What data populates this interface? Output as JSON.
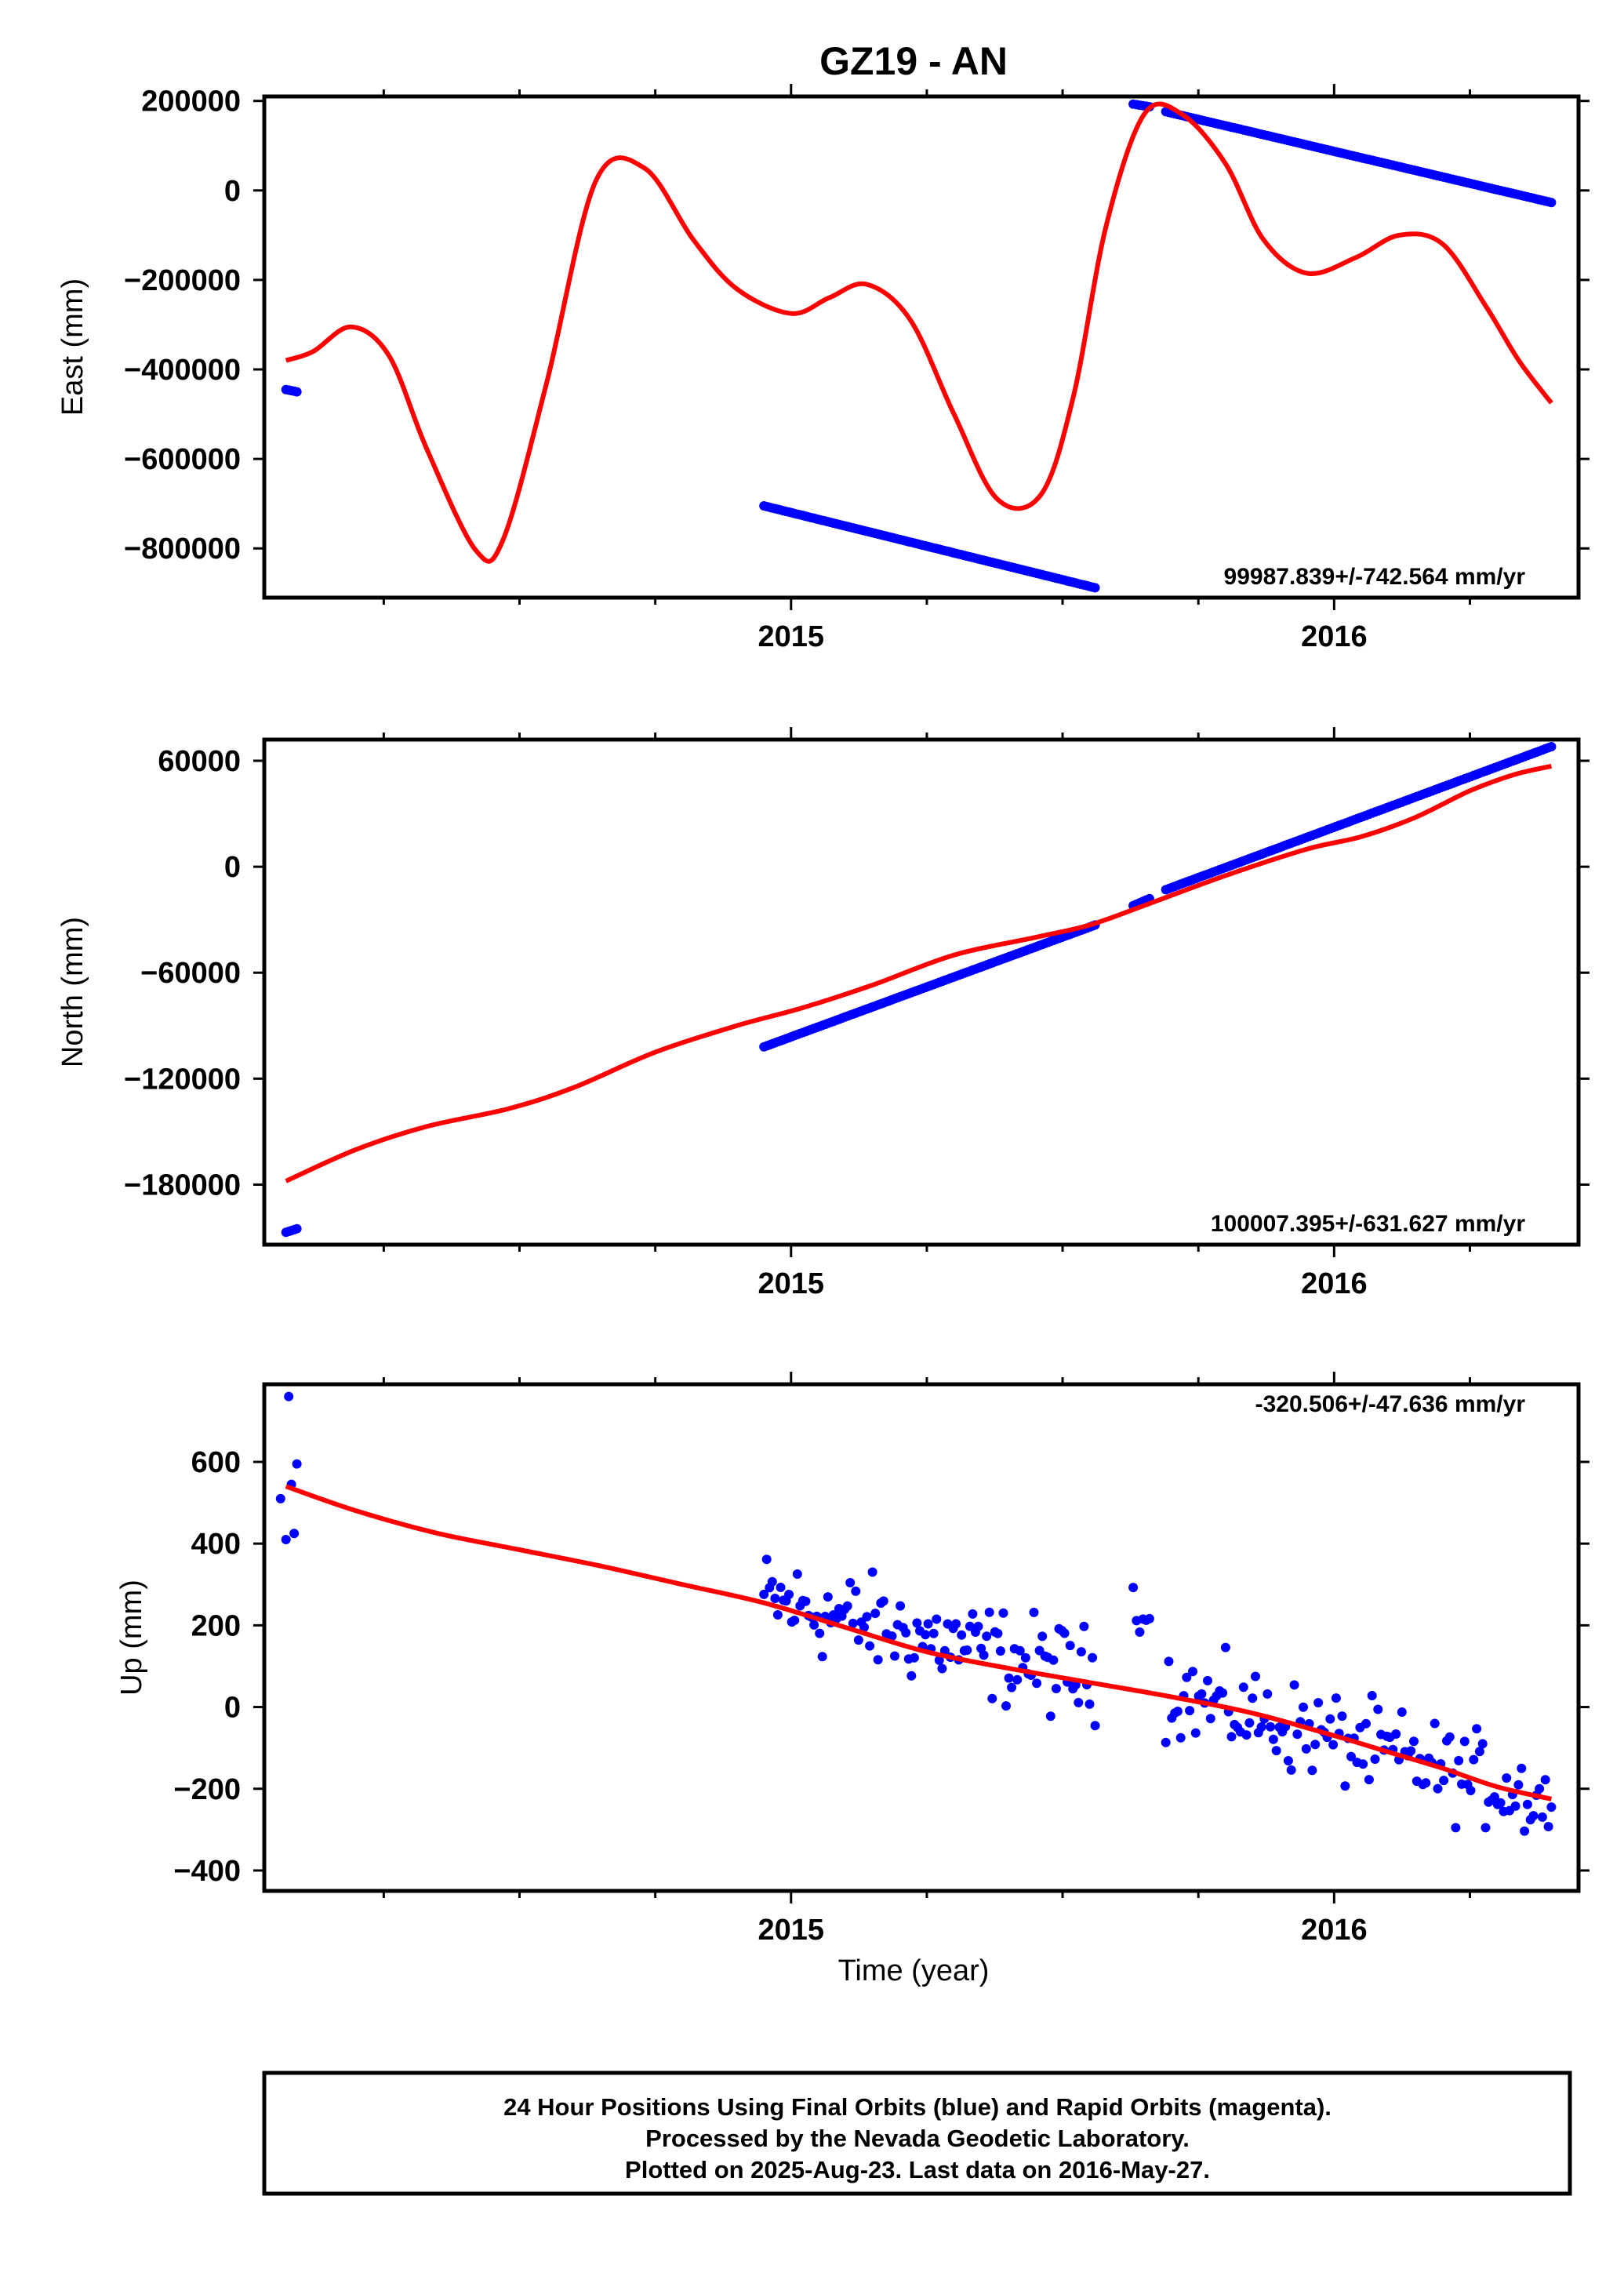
{
  "title": "GZ19 - AN",
  "colors": {
    "final_orbits": "#0000ff",
    "model": "#ff0000",
    "axes": "#000000"
  },
  "xlabel": "Time (year)",
  "x_tick_labels": [
    "2015",
    "2016"
  ],
  "footer": {
    "line1": "24 Hour Positions Using Final Orbits (blue) and Rapid Orbits (magenta).",
    "line2": "Processed by the Nevada Geodetic Laboratory.",
    "line3": "Plotted on 2025-Aug-23. Last data on 2016-May-27."
  },
  "chart_data": [
    {
      "type": "scatter",
      "panel": "east",
      "ylabel": "East (mm)",
      "rate_label": "99987.839+/-742.564 mm/yr",
      "xlim": [
        2014.03,
        2016.45
      ],
      "ylim": [
        -910000,
        210000
      ],
      "x_major_ticks": [
        2015,
        2016
      ],
      "x_minor_ticks": [
        2014.25,
        2014.5,
        2014.75,
        2015.25,
        2015.5,
        2015.75,
        2016.25
      ],
      "y_ticks": [
        200000,
        0,
        -200000,
        -400000,
        -600000,
        -800000
      ],
      "y_tick_labels": [
        "200000",
        "0",
        "−200000",
        "−400000",
        "−600000",
        "−800000"
      ],
      "series": [
        {
          "kind": "points",
          "segments": [
            {
              "x": [
                2014.07,
                2014.09
              ],
              "y": [
                -445000,
                -450000
              ],
              "n": 5
            },
            {
              "x": [
                2014.95,
                2015.56
              ],
              "y": [
                -705000,
                -888000
              ],
              "n": 120
            },
            {
              "x": [
                2015.63,
                2015.66
              ],
              "y": [
                193000,
                187000
              ],
              "n": 6
            },
            {
              "x": [
                2015.69,
                2016.4
              ],
              "y": [
                176000,
                -27000
              ],
              "n": 130
            }
          ]
        },
        {
          "kind": "line",
          "x": [
            2014.07,
            2014.12,
            2014.19,
            2014.26,
            2014.33,
            2014.42,
            2014.47,
            2014.55,
            2014.64,
            2014.73,
            2014.82,
            2014.9,
            2015.0,
            2015.07,
            2015.14,
            2015.22,
            2015.3,
            2015.38,
            2015.46,
            2015.52,
            2015.58,
            2015.65,
            2015.72,
            2015.8,
            2015.87,
            2015.95,
            2016.04,
            2016.12,
            2016.2,
            2016.28,
            2016.34,
            2016.4
          ],
          "y": [
            -380000,
            -360000,
            -305000,
            -370000,
            -580000,
            -805000,
            -780000,
            -430000,
            20000,
            50000,
            -110000,
            -220000,
            -275000,
            -240000,
            -210000,
            -290000,
            -500000,
            -690000,
            -680000,
            -460000,
            -80000,
            170000,
            170000,
            60000,
            -110000,
            -185000,
            -150000,
            -100000,
            -120000,
            -260000,
            -380000,
            -475000
          ]
        }
      ]
    },
    {
      "type": "scatter",
      "panel": "north",
      "ylabel": "North (mm)",
      "rate_label": "100007.395+/-631.627 mm/yr",
      "xlim": [
        2014.03,
        2016.45
      ],
      "ylim": [
        -214000,
        72000
      ],
      "x_major_ticks": [
        2015,
        2016
      ],
      "x_minor_ticks": [
        2014.25,
        2014.5,
        2014.75,
        2015.25,
        2015.5,
        2015.75,
        2016.25
      ],
      "y_ticks": [
        60000,
        0,
        -60000,
        -120000,
        -180000
      ],
      "y_tick_labels": [
        "60000",
        "0",
        "−60000",
        "−120000",
        "−180000"
      ],
      "series": [
        {
          "kind": "points",
          "segments": [
            {
              "x": [
                2014.07,
                2014.09
              ],
              "y": [
                -207000,
                -205000
              ],
              "n": 5
            },
            {
              "x": [
                2014.95,
                2015.56
              ],
              "y": [
                -102000,
                -33000
              ],
              "n": 120
            },
            {
              "x": [
                2015.63,
                2015.66
              ],
              "y": [
                -22000,
                -18000
              ],
              "n": 6
            },
            {
              "x": [
                2015.69,
                2016.4
              ],
              "y": [
                -13000,
                68000
              ],
              "n": 130
            }
          ]
        },
        {
          "kind": "line",
          "x": [
            2014.07,
            2014.2,
            2014.33,
            2014.48,
            2014.6,
            2014.75,
            2014.9,
            2015.02,
            2015.15,
            2015.3,
            2015.45,
            2015.55,
            2015.65,
            2015.8,
            2015.95,
            2016.05,
            2016.15,
            2016.25,
            2016.33,
            2016.4
          ],
          "y": [
            -178000,
            -160000,
            -147000,
            -137000,
            -125000,
            -105000,
            -90000,
            -80000,
            -67000,
            -50000,
            -40000,
            -33000,
            -22000,
            -5000,
            10000,
            17000,
            28000,
            43000,
            52000,
            57000
          ]
        }
      ]
    },
    {
      "type": "scatter",
      "panel": "up",
      "ylabel": "Up (mm)",
      "rate_label": "-320.506+/-47.636 mm/yr",
      "xlim": [
        2014.03,
        2016.45
      ],
      "ylim": [
        -450,
        790
      ],
      "x_major_ticks": [
        2015,
        2016
      ],
      "x_minor_ticks": [
        2014.25,
        2014.5,
        2014.75,
        2015.25,
        2015.5,
        2015.75,
        2016.25
      ],
      "y_ticks": [
        600,
        400,
        200,
        0,
        -200,
        -400
      ],
      "y_tick_labels": [
        "600",
        "400",
        "200",
        "0",
        "−200",
        "−400"
      ],
      "series": [
        {
          "kind": "points",
          "scatter": true,
          "points": [
            [
              2014.06,
              510
            ],
            [
              2014.07,
              410
            ],
            [
              2014.075,
              760
            ],
            [
              2014.08,
              545
            ],
            [
              2014.085,
              425
            ],
            [
              2014.09,
              595
            ]
          ],
          "segments": [
            {
              "x": [
                2014.95,
                2015.56
              ],
              "y": [
                265,
                70
              ],
              "n": 120,
              "spread": 105
            },
            {
              "x": [
                2015.63,
                2015.66
              ],
              "y": [
                275,
                200
              ],
              "n": 6,
              "spread": 50
            },
            {
              "x": [
                2015.69,
                2016.4
              ],
              "y": [
                40,
                -230
              ],
              "n": 130,
              "spread": 100
            }
          ]
        },
        {
          "kind": "line",
          "x": [
            2014.07,
            2014.2,
            2014.35,
            2014.5,
            2014.65,
            2014.8,
            2014.95,
            2015.1,
            2015.25,
            2015.4,
            2015.55,
            2015.7,
            2015.85,
            2016.0,
            2016.1,
            2016.2,
            2016.3,
            2016.4
          ],
          "y": [
            540,
            480,
            425,
            385,
            345,
            300,
            255,
            195,
            135,
            95,
            60,
            25,
            -15,
            -70,
            -110,
            -150,
            -195,
            -225
          ]
        }
      ]
    }
  ]
}
